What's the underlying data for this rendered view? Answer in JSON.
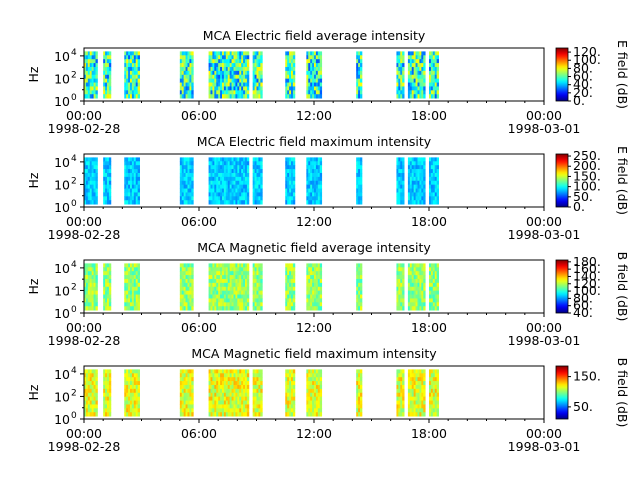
{
  "chart_data": [
    {
      "type": "heatmap",
      "title": "MCA  Electric field average intensity",
      "ylabel": "Hz",
      "yscale": "log",
      "ylim": [
        1,
        50000
      ],
      "ytick_labels": [
        "10",
        "10",
        "10"
      ],
      "ytick_exponents": [
        "0",
        "2",
        "4"
      ],
      "xtick_labels": [
        "00:00",
        "06:00",
        "12:00",
        "18:00",
        "00:00"
      ],
      "xtick_dates": [
        "1998-02-28",
        "1998-03-01"
      ],
      "colorbar": {
        "label": "E field (dB)",
        "range": [
          0,
          130
        ],
        "ticks": [
          0,
          20,
          40,
          60,
          80,
          100,
          120
        ],
        "tick_labels": [
          "0.",
          "20.",
          "40.",
          "60.",
          "80.",
          "100.",
          "120."
        ]
      },
      "data_segments_hours": [
        [
          0.0,
          0.7
        ],
        [
          1.0,
          1.4
        ],
        [
          2.1,
          2.5
        ],
        [
          2.5,
          2.9
        ],
        [
          5.0,
          5.4
        ],
        [
          5.4,
          5.7
        ],
        [
          6.5,
          7.0
        ],
        [
          7.0,
          7.8
        ],
        [
          7.8,
          8.6
        ],
        [
          8.8,
          9.3
        ],
        [
          10.5,
          11.0
        ],
        [
          11.6,
          12.0
        ],
        [
          12.0,
          12.4
        ],
        [
          14.2,
          14.5
        ],
        [
          16.3,
          16.7
        ],
        [
          16.9,
          17.4
        ],
        [
          17.4,
          17.8
        ],
        [
          18.0,
          18.5
        ]
      ],
      "mean_level": 55,
      "noise": 28
    },
    {
      "type": "heatmap",
      "title": "MCA  Electric field maximum intensity",
      "ylabel": "Hz",
      "yscale": "log",
      "ylim": [
        1,
        50000
      ],
      "ytick_labels": [
        "10",
        "10",
        "10"
      ],
      "ytick_exponents": [
        "0",
        "2",
        "4"
      ],
      "xtick_labels": [
        "00:00",
        "06:00",
        "12:00",
        "18:00",
        "00:00"
      ],
      "xtick_dates": [
        "1998-02-28",
        "1998-03-01"
      ],
      "colorbar": {
        "label": "E field (dB)",
        "range": [
          0,
          260
        ],
        "ticks": [
          0,
          50,
          100,
          150,
          200,
          250
        ],
        "tick_labels": [
          "0.",
          "50.",
          "100.",
          "150.",
          "200.",
          "250."
        ]
      },
      "data_segments_hours": [
        [
          0.0,
          0.7
        ],
        [
          1.0,
          1.4
        ],
        [
          2.1,
          2.5
        ],
        [
          2.5,
          2.9
        ],
        [
          5.0,
          5.4
        ],
        [
          5.4,
          5.7
        ],
        [
          6.5,
          7.0
        ],
        [
          7.0,
          7.8
        ],
        [
          7.8,
          8.6
        ],
        [
          8.8,
          9.3
        ],
        [
          10.5,
          11.0
        ],
        [
          11.6,
          12.0
        ],
        [
          12.0,
          12.4
        ],
        [
          14.2,
          14.5
        ],
        [
          16.3,
          16.7
        ],
        [
          16.9,
          17.4
        ],
        [
          17.4,
          17.8
        ],
        [
          18.0,
          18.5
        ]
      ],
      "mean_level": 85,
      "noise": 18
    },
    {
      "type": "heatmap",
      "title": "MCA  Magnetic field average intensity",
      "ylabel": "Hz",
      "yscale": "log",
      "ylim": [
        1,
        50000
      ],
      "ytick_labels": [
        "10",
        "10",
        "10"
      ],
      "ytick_exponents": [
        "0",
        "2",
        "4"
      ],
      "xtick_labels": [
        "00:00",
        "06:00",
        "12:00",
        "18:00",
        "00:00"
      ],
      "xtick_dates": [
        "1998-02-28",
        "1998-03-01"
      ],
      "colorbar": {
        "label": "B field (dB)",
        "range": [
          40,
          185
        ],
        "ticks": [
          40,
          60,
          80,
          100,
          120,
          140,
          160,
          180
        ],
        "tick_labels": [
          "40.",
          "60.",
          "80.",
          "100.",
          "120.",
          "140.",
          "160.",
          "180."
        ]
      },
      "data_segments_hours": [
        [
          0.0,
          0.7
        ],
        [
          1.0,
          1.4
        ],
        [
          2.1,
          2.5
        ],
        [
          2.5,
          2.9
        ],
        [
          5.0,
          5.4
        ],
        [
          5.4,
          5.7
        ],
        [
          6.5,
          7.0
        ],
        [
          7.0,
          7.8
        ],
        [
          7.8,
          8.6
        ],
        [
          8.8,
          9.3
        ],
        [
          10.5,
          11.0
        ],
        [
          11.6,
          12.0
        ],
        [
          12.0,
          12.4
        ],
        [
          14.2,
          14.5
        ],
        [
          16.3,
          16.7
        ],
        [
          16.9,
          17.4
        ],
        [
          17.4,
          17.8
        ],
        [
          18.0,
          18.5
        ]
      ],
      "mean_level": 115,
      "noise": 14
    },
    {
      "type": "heatmap",
      "title": "MCA  Magnetic field maximum intensity",
      "ylabel": "Hz",
      "yscale": "log",
      "ylim": [
        1,
        50000
      ],
      "ytick_labels": [
        "10",
        "10",
        "10"
      ],
      "ytick_exponents": [
        "0",
        "2",
        "4"
      ],
      "xtick_labels": [
        "00:00",
        "06:00",
        "12:00",
        "18:00",
        "00:00"
      ],
      "xtick_dates": [
        "1998-02-28",
        "1998-03-01"
      ],
      "colorbar": {
        "label": "B field (dB)",
        "range": [
          10,
          185
        ],
        "ticks": [
          50,
          150
        ],
        "tick_labels": [
          "50.",
          "150."
        ]
      },
      "data_segments_hours": [
        [
          0.0,
          0.7
        ],
        [
          1.0,
          1.4
        ],
        [
          2.1,
          2.5
        ],
        [
          2.5,
          2.9
        ],
        [
          5.0,
          5.4
        ],
        [
          5.4,
          5.7
        ],
        [
          6.5,
          7.0
        ],
        [
          7.0,
          7.8
        ],
        [
          7.8,
          8.6
        ],
        [
          8.8,
          9.3
        ],
        [
          10.5,
          11.0
        ],
        [
          11.6,
          12.0
        ],
        [
          12.0,
          12.4
        ],
        [
          14.2,
          14.5
        ],
        [
          16.3,
          16.7
        ],
        [
          16.9,
          17.4
        ],
        [
          17.4,
          17.8
        ],
        [
          18.0,
          18.5
        ]
      ],
      "mean_level": 115,
      "noise": 18
    }
  ]
}
